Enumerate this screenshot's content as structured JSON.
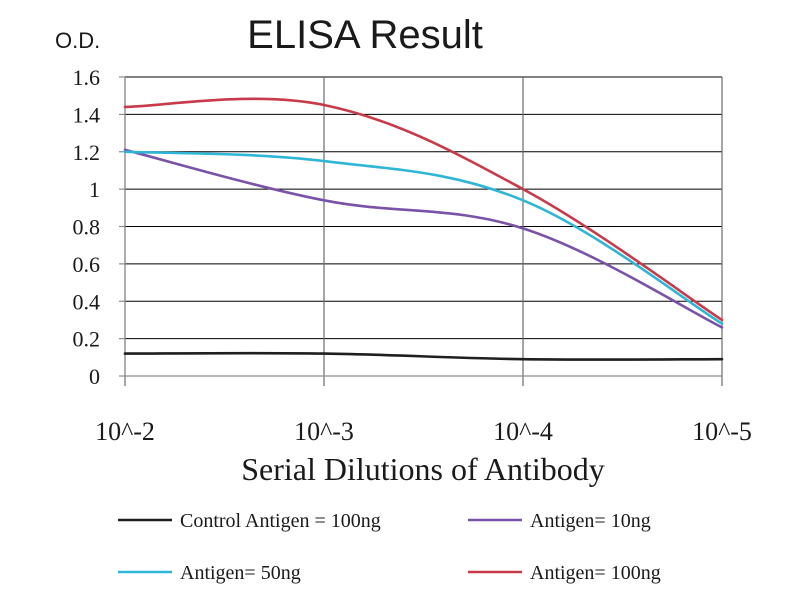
{
  "chart_data": {
    "type": "line",
    "title": "ELISA Result",
    "ylabel": "O.D.",
    "xlabel": "Serial Dilutions of Antibody",
    "categories": [
      "10^-2",
      "10^-3",
      "10^-4",
      "10^-5"
    ],
    "ylim": [
      0,
      1.6
    ],
    "yticks": [
      "0",
      "0.2",
      "0.4",
      "0.6",
      "0.8",
      "1",
      "1.2",
      "1.4",
      "1.6"
    ],
    "grid": true,
    "legend_position": "bottom",
    "series": [
      {
        "name": "Control Antigen = 100ng",
        "color": "#1f1f1f",
        "values": [
          0.12,
          0.12,
          0.09,
          0.09
        ]
      },
      {
        "name": "Antigen= 10ng",
        "color": "#7a52a8",
        "values": [
          1.21,
          0.94,
          0.79,
          0.26
        ]
      },
      {
        "name": "Antigen= 50ng",
        "color": "#2fb6d6",
        "values": [
          1.2,
          1.15,
          0.94,
          0.28
        ]
      },
      {
        "name": "Antigen= 100ng",
        "color": "#c83a4a",
        "values": [
          1.44,
          1.45,
          1.0,
          0.3
        ]
      }
    ]
  }
}
